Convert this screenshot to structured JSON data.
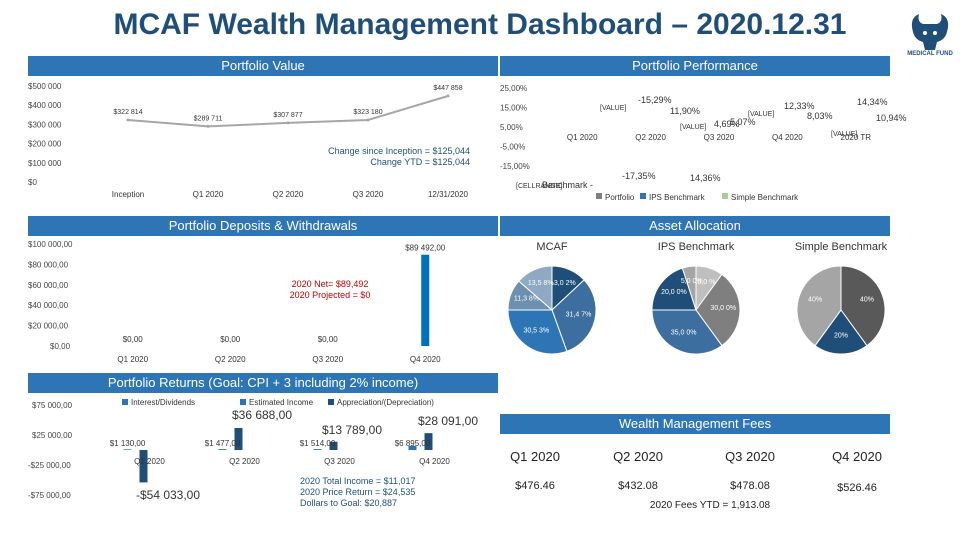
{
  "title": "MCAF Wealth Management Dashboard – 2020.12.31",
  "logo": {
    "text": "MEDICAL FUND"
  },
  "sections": {
    "portfolio_value": "Portfolio Value",
    "portfolio_performance": "Portfolio Performance",
    "deposits": "Portfolio Deposits & Withdrawals",
    "allocation": "Asset Allocation",
    "returns": "Portfolio Returns (Goal: CPI + 3 including 2% income)",
    "fees": "Wealth Management Fees"
  },
  "colors": {
    "accent": "#2e75b6",
    "dark": "#1f4e79",
    "line": "#a6a6a6",
    "bar": "#4472c4"
  },
  "chart_data": [
    {
      "id": "value",
      "type": "line",
      "categories": [
        "Inception",
        "Q1 2020",
        "Q2 2020",
        "Q3 2020",
        "12/31/2020"
      ],
      "values": [
        322814,
        289711,
        307877,
        323180,
        447858
      ],
      "data_labels": [
        "$322 814",
        "$289 711",
        "$307 877",
        "$323 180",
        "$447 858"
      ],
      "yticks": [
        "$500 000",
        "$400 000",
        "$300 000",
        "$200 000",
        "$100 000",
        "$0"
      ],
      "ylim": [
        0,
        500000
      ],
      "annotation": [
        "Change since Inception = $125,044",
        "Change YTD = $125,044"
      ]
    },
    {
      "id": "performance",
      "type": "bar",
      "categories": [
        "Q1 2020",
        "Q2 2020",
        "Q3 2020",
        "Q4 2020",
        "2020 TR"
      ],
      "series": [
        {
          "name": "Portfolio",
          "values": [
            -17.35,
            14.36,
            5.07,
            12.33,
            14.34
          ]
        },
        {
          "name": "IPS Benchmark",
          "values": [
            -15.29,
            11.9,
            4.69,
            8.03,
            10.94
          ]
        },
        {
          "name": "Simple Benchmark",
          "values": [
            null,
            null,
            null,
            null,
            null
          ]
        }
      ],
      "data_labels": [
        "-17,35%",
        "14,36%",
        "5,07%",
        "12,33%",
        "14,34%",
        "-15,29%",
        "11,90%",
        "4,69%",
        "8,03%",
        "10,94%"
      ],
      "placeholder_labels": [
        "[VALUE]",
        "[VALUE]",
        "[VALUE]",
        "[VALUE]",
        "[CELLRANGE]"
      ],
      "yticks": [
        "25,00%",
        "15,00%",
        "5,00%",
        "-5,00%",
        "-15,00%"
      ],
      "ylim": [
        -20,
        25
      ],
      "legend": [
        "Portfolio",
        "IPS Benchmark",
        "Simple Benchmark"
      ],
      "legend_prefix": "Benchmark -"
    },
    {
      "id": "deposits",
      "type": "bar",
      "categories": [
        "Q1 2020",
        "Q2 2020",
        "Q3 2020",
        "Q4 2020"
      ],
      "values": [
        0,
        0,
        0,
        89492
      ],
      "data_labels": [
        "$0,00",
        "$0,00",
        "$0,00",
        "$89 492,00"
      ],
      "yticks": [
        "$100 000,00",
        "$80 000,00",
        "$60 000,00",
        "$40 000,00",
        "$20 000,00",
        "$0,00"
      ],
      "ylim": [
        0,
        100000
      ],
      "annotation": [
        "2020 Net= $89,492",
        "2020 Projected = $0"
      ]
    },
    {
      "id": "allocation",
      "type": "pie",
      "charts": [
        {
          "title": "MCAF",
          "labels": [
            "13,0 2%",
            "31,4 7%",
            "30,5 3%",
            "11,3 8%",
            "13,5 8%"
          ],
          "values": [
            13.02,
            31.47,
            30.53,
            11.38,
            13.58
          ]
        },
        {
          "title": "IPS Benchmark",
          "labels": [
            "10,0 %",
            "30,0 0%",
            "35,0 0%",
            "20,0 0%",
            "5,0 0%"
          ],
          "values": [
            10,
            30,
            35,
            20,
            5
          ]
        },
        {
          "title": "Simple Benchmark",
          "labels": [
            "40%",
            "20%",
            "40%"
          ],
          "values": [
            40,
            20,
            40
          ]
        }
      ]
    },
    {
      "id": "returns",
      "type": "bar",
      "categories": [
        "Q1 2020",
        "Q2 2020",
        "Q3 2020",
        "Q4 2020"
      ],
      "series": [
        {
          "name": "Interest/Dividends",
          "values": [
            1130,
            1477,
            1514,
            6895
          ]
        },
        {
          "name": "Estimated Income",
          "values": [
            null,
            null,
            null,
            null
          ]
        },
        {
          "name": "Appreciation/(Depreciation)",
          "values": [
            -54033,
            36688,
            13789,
            28091
          ]
        }
      ],
      "income_labels": [
        "$1 130,00",
        "$1 477,00",
        "$1 514,00",
        "$6 895,00"
      ],
      "appreciation_labels": [
        "-$54 033,00",
        "$36 688,00",
        "$13 789,00",
        "$28 091,00"
      ],
      "yticks": [
        "$75 000,00",
        "$25 000,00",
        "-$25 000,00",
        "-$75 000,00"
      ],
      "ylim": [
        -75000,
        75000
      ],
      "annotation": [
        "2020 Total Income = $11,017",
        "2020 Price Return = $24,535",
        "Dollars to Goal: $20,887"
      ]
    }
  ],
  "fees": {
    "quarters": [
      {
        "q": "Q1 2020",
        "v": "$476.46"
      },
      {
        "q": "Q2 2020",
        "v": "$432.08"
      },
      {
        "q": "Q3 2020",
        "v": "$478.08"
      },
      {
        "q": "Q4 2020",
        "v": "$526.46"
      }
    ],
    "ytd": "2020 Fees YTD = 1,913.08"
  }
}
